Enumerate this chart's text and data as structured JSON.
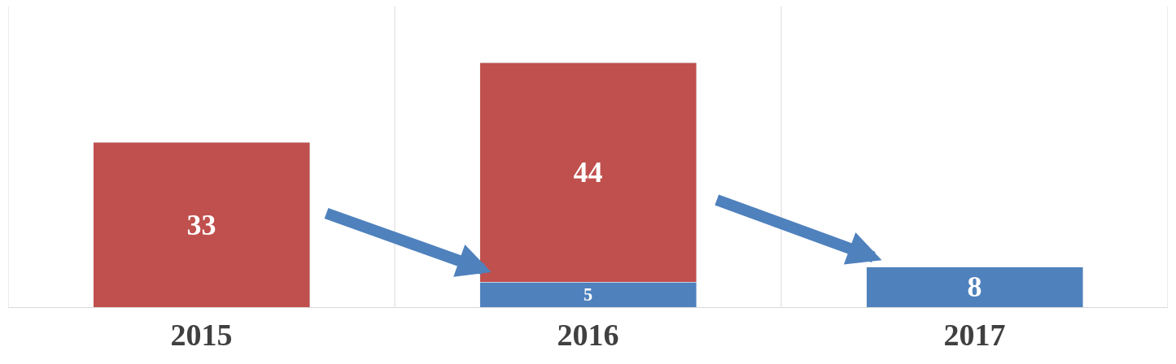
{
  "chart_data": {
    "type": "bar",
    "stacked": true,
    "categories": [
      "2015",
      "2016",
      "2017"
    ],
    "series": [
      {
        "color": "#4f81bd",
        "values": [
          null,
          5,
          8
        ]
      },
      {
        "color": "#c0504d",
        "values": [
          33,
          44,
          null
        ]
      }
    ],
    "data_labels": true,
    "grid": "x"
  }
}
